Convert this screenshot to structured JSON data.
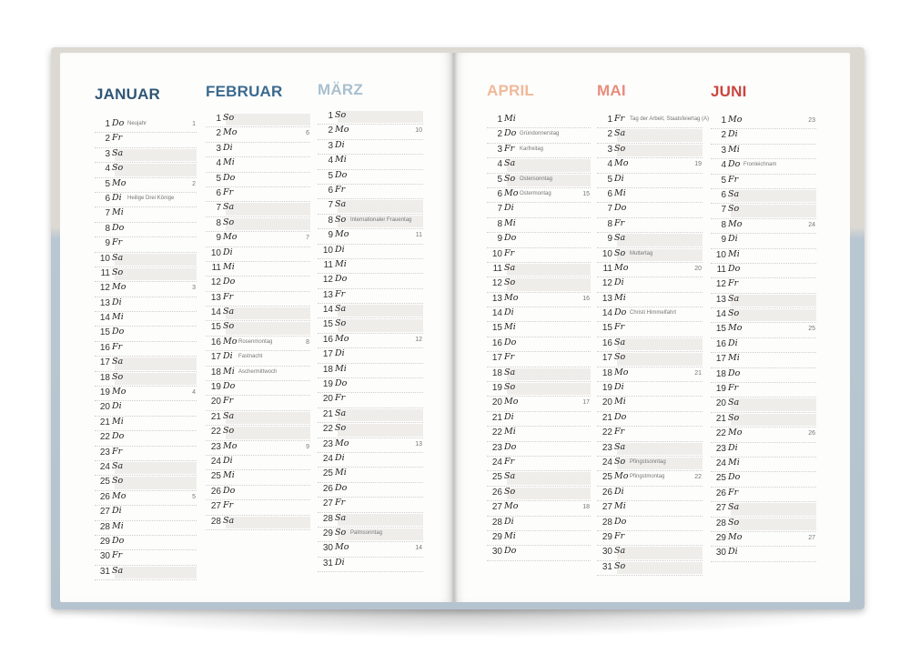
{
  "left_page": {
    "months": [
      {
        "name": "JANUAR",
        "color": "#2f5676",
        "days": [
          {
            "d": "1",
            "w": "Do",
            "hol": "Neujahr",
            "kw": "1"
          },
          {
            "d": "2",
            "w": "Fr"
          },
          {
            "d": "3",
            "w": "Sa",
            "we": true
          },
          {
            "d": "4",
            "w": "So",
            "we": true
          },
          {
            "d": "5",
            "w": "Mo",
            "kw": "2"
          },
          {
            "d": "6",
            "w": "Di",
            "hol": "Heilige Drei Könige"
          },
          {
            "d": "7",
            "w": "Mi"
          },
          {
            "d": "8",
            "w": "Do"
          },
          {
            "d": "9",
            "w": "Fr"
          },
          {
            "d": "10",
            "w": "Sa",
            "we": true
          },
          {
            "d": "11",
            "w": "So",
            "we": true
          },
          {
            "d": "12",
            "w": "Mo",
            "kw": "3"
          },
          {
            "d": "13",
            "w": "Di"
          },
          {
            "d": "14",
            "w": "Mi"
          },
          {
            "d": "15",
            "w": "Do"
          },
          {
            "d": "16",
            "w": "Fr"
          },
          {
            "d": "17",
            "w": "Sa",
            "we": true
          },
          {
            "d": "18",
            "w": "So",
            "we": true
          },
          {
            "d": "19",
            "w": "Mo",
            "kw": "4"
          },
          {
            "d": "20",
            "w": "Di"
          },
          {
            "d": "21",
            "w": "Mi"
          },
          {
            "d": "22",
            "w": "Do"
          },
          {
            "d": "23",
            "w": "Fr"
          },
          {
            "d": "24",
            "w": "Sa",
            "we": true
          },
          {
            "d": "25",
            "w": "So",
            "we": true
          },
          {
            "d": "26",
            "w": "Mo",
            "kw": "5"
          },
          {
            "d": "27",
            "w": "Di"
          },
          {
            "d": "28",
            "w": "Mi"
          },
          {
            "d": "29",
            "w": "Do"
          },
          {
            "d": "30",
            "w": "Fr"
          },
          {
            "d": "31",
            "w": "Sa",
            "we": true
          }
        ]
      },
      {
        "name": "FEBRUAR",
        "color": "#3b6a8f",
        "days": [
          {
            "d": "1",
            "w": "So",
            "we": true
          },
          {
            "d": "2",
            "w": "Mo",
            "kw": "6"
          },
          {
            "d": "3",
            "w": "Di"
          },
          {
            "d": "4",
            "w": "Mi"
          },
          {
            "d": "5",
            "w": "Do"
          },
          {
            "d": "6",
            "w": "Fr"
          },
          {
            "d": "7",
            "w": "Sa",
            "we": true
          },
          {
            "d": "8",
            "w": "So",
            "we": true
          },
          {
            "d": "9",
            "w": "Mo",
            "kw": "7"
          },
          {
            "d": "10",
            "w": "Di"
          },
          {
            "d": "11",
            "w": "Mi"
          },
          {
            "d": "12",
            "w": "Do"
          },
          {
            "d": "13",
            "w": "Fr"
          },
          {
            "d": "14",
            "w": "Sa",
            "we": true
          },
          {
            "d": "15",
            "w": "So",
            "we": true
          },
          {
            "d": "16",
            "w": "Mo",
            "hol": "Rosenmontag",
            "kw": "8"
          },
          {
            "d": "17",
            "w": "Di",
            "hol": "Fastnacht"
          },
          {
            "d": "18",
            "w": "Mi",
            "hol": "Aschermittwoch"
          },
          {
            "d": "19",
            "w": "Do"
          },
          {
            "d": "20",
            "w": "Fr"
          },
          {
            "d": "21",
            "w": "Sa",
            "we": true
          },
          {
            "d": "22",
            "w": "So",
            "we": true
          },
          {
            "d": "23",
            "w": "Mo",
            "kw": "9"
          },
          {
            "d": "24",
            "w": "Di"
          },
          {
            "d": "25",
            "w": "Mi"
          },
          {
            "d": "26",
            "w": "Do"
          },
          {
            "d": "27",
            "w": "Fr"
          },
          {
            "d": "28",
            "w": "Sa",
            "we": true
          }
        ]
      },
      {
        "name": "MÄRZ",
        "color": "#a9bfcf",
        "days": [
          {
            "d": "1",
            "w": "So",
            "we": true
          },
          {
            "d": "2",
            "w": "Mo",
            "kw": "10"
          },
          {
            "d": "3",
            "w": "Di"
          },
          {
            "d": "4",
            "w": "Mi"
          },
          {
            "d": "5",
            "w": "Do"
          },
          {
            "d": "6",
            "w": "Fr"
          },
          {
            "d": "7",
            "w": "Sa",
            "we": true
          },
          {
            "d": "8",
            "w": "So",
            "we": true,
            "hol": "Internationaler Frauentag"
          },
          {
            "d": "9",
            "w": "Mo",
            "kw": "11"
          },
          {
            "d": "10",
            "w": "Di"
          },
          {
            "d": "11",
            "w": "Mi"
          },
          {
            "d": "12",
            "w": "Do"
          },
          {
            "d": "13",
            "w": "Fr"
          },
          {
            "d": "14",
            "w": "Sa",
            "we": true
          },
          {
            "d": "15",
            "w": "So",
            "we": true
          },
          {
            "d": "16",
            "w": "Mo",
            "kw": "12"
          },
          {
            "d": "17",
            "w": "Di"
          },
          {
            "d": "18",
            "w": "Mi"
          },
          {
            "d": "19",
            "w": "Do"
          },
          {
            "d": "20",
            "w": "Fr"
          },
          {
            "d": "21",
            "w": "Sa",
            "we": true
          },
          {
            "d": "22",
            "w": "So",
            "we": true
          },
          {
            "d": "23",
            "w": "Mo",
            "kw": "13"
          },
          {
            "d": "24",
            "w": "Di"
          },
          {
            "d": "25",
            "w": "Mi"
          },
          {
            "d": "26",
            "w": "Do"
          },
          {
            "d": "27",
            "w": "Fr"
          },
          {
            "d": "28",
            "w": "Sa",
            "we": true
          },
          {
            "d": "29",
            "w": "So",
            "we": true,
            "hol": "Palmsonntag"
          },
          {
            "d": "30",
            "w": "Mo",
            "kw": "14"
          },
          {
            "d": "31",
            "w": "Di"
          }
        ]
      }
    ]
  },
  "right_page": {
    "months": [
      {
        "name": "APRIL",
        "color": "#f0b89a",
        "days": [
          {
            "d": "1",
            "w": "Mi"
          },
          {
            "d": "2",
            "w": "Do",
            "hol": "Gründonnerstag"
          },
          {
            "d": "3",
            "w": "Fr",
            "hol": "Karfreitag"
          },
          {
            "d": "4",
            "w": "Sa",
            "we": true
          },
          {
            "d": "5",
            "w": "So",
            "we": true,
            "hol": "Ostersonntag"
          },
          {
            "d": "6",
            "w": "Mo",
            "hol": "Ostermontag",
            "kw": "15"
          },
          {
            "d": "7",
            "w": "Di"
          },
          {
            "d": "8",
            "w": "Mi"
          },
          {
            "d": "9",
            "w": "Do"
          },
          {
            "d": "10",
            "w": "Fr"
          },
          {
            "d": "11",
            "w": "Sa",
            "we": true
          },
          {
            "d": "12",
            "w": "So",
            "we": true
          },
          {
            "d": "13",
            "w": "Mo",
            "kw": "16"
          },
          {
            "d": "14",
            "w": "Di"
          },
          {
            "d": "15",
            "w": "Mi"
          },
          {
            "d": "16",
            "w": "Do"
          },
          {
            "d": "17",
            "w": "Fr"
          },
          {
            "d": "18",
            "w": "Sa",
            "we": true
          },
          {
            "d": "19",
            "w": "So",
            "we": true
          },
          {
            "d": "20",
            "w": "Mo",
            "kw": "17"
          },
          {
            "d": "21",
            "w": "Di"
          },
          {
            "d": "22",
            "w": "Mi"
          },
          {
            "d": "23",
            "w": "Do"
          },
          {
            "d": "24",
            "w": "Fr"
          },
          {
            "d": "25",
            "w": "Sa",
            "we": true
          },
          {
            "d": "26",
            "w": "So",
            "we": true
          },
          {
            "d": "27",
            "w": "Mo",
            "kw": "18"
          },
          {
            "d": "28",
            "w": "Di"
          },
          {
            "d": "29",
            "w": "Mi"
          },
          {
            "d": "30",
            "w": "Do"
          }
        ]
      },
      {
        "name": "MAI",
        "color": "#e98c7c",
        "days": [
          {
            "d": "1",
            "w": "Fr",
            "hol": "Tag der Arbeit, Staatsfeiertag (A)"
          },
          {
            "d": "2",
            "w": "Sa",
            "we": true
          },
          {
            "d": "3",
            "w": "So",
            "we": true
          },
          {
            "d": "4",
            "w": "Mo",
            "kw": "19"
          },
          {
            "d": "5",
            "w": "Di"
          },
          {
            "d": "6",
            "w": "Mi"
          },
          {
            "d": "7",
            "w": "Do"
          },
          {
            "d": "8",
            "w": "Fr"
          },
          {
            "d": "9",
            "w": "Sa",
            "we": true
          },
          {
            "d": "10",
            "w": "So",
            "we": true,
            "hol": "Muttertag"
          },
          {
            "d": "11",
            "w": "Mo",
            "kw": "20"
          },
          {
            "d": "12",
            "w": "Di"
          },
          {
            "d": "13",
            "w": "Mi"
          },
          {
            "d": "14",
            "w": "Do",
            "hol": "Christi Himmelfahrt"
          },
          {
            "d": "15",
            "w": "Fr"
          },
          {
            "d": "16",
            "w": "Sa",
            "we": true
          },
          {
            "d": "17",
            "w": "So",
            "we": true
          },
          {
            "d": "18",
            "w": "Mo",
            "kw": "21"
          },
          {
            "d": "19",
            "w": "Di"
          },
          {
            "d": "20",
            "w": "Mi"
          },
          {
            "d": "21",
            "w": "Do"
          },
          {
            "d": "22",
            "w": "Fr"
          },
          {
            "d": "23",
            "w": "Sa",
            "we": true
          },
          {
            "d": "24",
            "w": "So",
            "we": true,
            "hol": "Pfingstsonntag"
          },
          {
            "d": "25",
            "w": "Mo",
            "hol": "Pfingstmontag",
            "kw": "22"
          },
          {
            "d": "26",
            "w": "Di"
          },
          {
            "d": "27",
            "w": "Mi"
          },
          {
            "d": "28",
            "w": "Do"
          },
          {
            "d": "29",
            "w": "Fr"
          },
          {
            "d": "30",
            "w": "Sa",
            "we": true
          },
          {
            "d": "31",
            "w": "So",
            "we": true
          }
        ]
      },
      {
        "name": "JUNI",
        "color": "#c9463f",
        "days": [
          {
            "d": "1",
            "w": "Mo",
            "kw": "23"
          },
          {
            "d": "2",
            "w": "Di"
          },
          {
            "d": "3",
            "w": "Mi"
          },
          {
            "d": "4",
            "w": "Do",
            "hol": "Fronleichnam"
          },
          {
            "d": "5",
            "w": "Fr"
          },
          {
            "d": "6",
            "w": "Sa",
            "we": true
          },
          {
            "d": "7",
            "w": "So",
            "we": true
          },
          {
            "d": "8",
            "w": "Mo",
            "kw": "24"
          },
          {
            "d": "9",
            "w": "Di"
          },
          {
            "d": "10",
            "w": "Mi"
          },
          {
            "d": "11",
            "w": "Do"
          },
          {
            "d": "12",
            "w": "Fr"
          },
          {
            "d": "13",
            "w": "Sa",
            "we": true
          },
          {
            "d": "14",
            "w": "So",
            "we": true
          },
          {
            "d": "15",
            "w": "Mo",
            "kw": "25"
          },
          {
            "d": "16",
            "w": "Di"
          },
          {
            "d": "17",
            "w": "Mi"
          },
          {
            "d": "18",
            "w": "Do"
          },
          {
            "d": "19",
            "w": "Fr"
          },
          {
            "d": "20",
            "w": "Sa",
            "we": true
          },
          {
            "d": "21",
            "w": "So",
            "we": true
          },
          {
            "d": "22",
            "w": "Mo",
            "kw": "26"
          },
          {
            "d": "23",
            "w": "Di"
          },
          {
            "d": "24",
            "w": "Mi"
          },
          {
            "d": "25",
            "w": "Do"
          },
          {
            "d": "26",
            "w": "Fr"
          },
          {
            "d": "27",
            "w": "Sa",
            "we": true
          },
          {
            "d": "28",
            "w": "So",
            "we": true
          },
          {
            "d": "29",
            "w": "Mo",
            "kw": "27"
          },
          {
            "d": "30",
            "w": "Di"
          }
        ]
      }
    ]
  }
}
